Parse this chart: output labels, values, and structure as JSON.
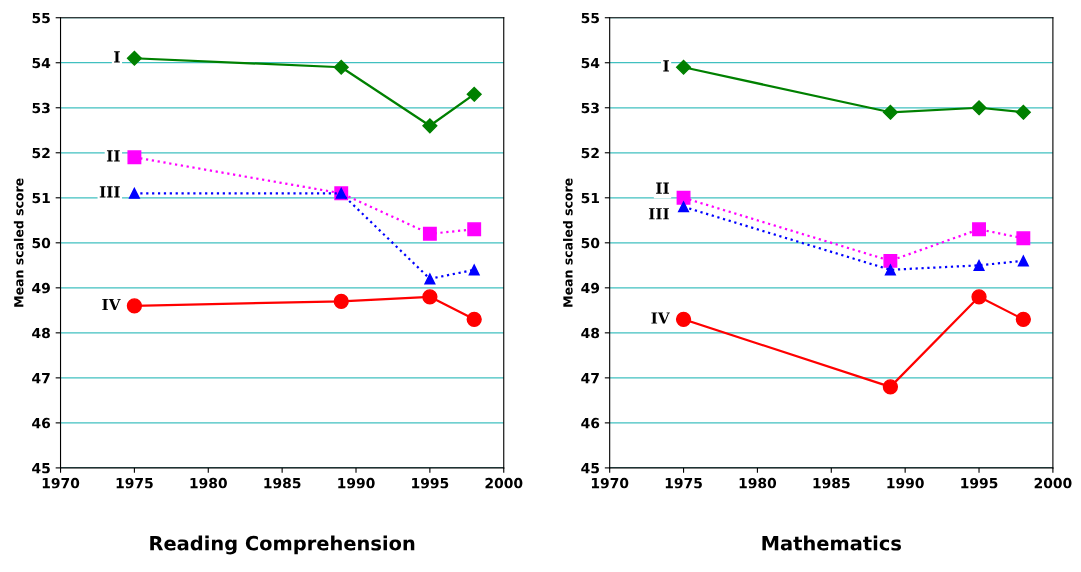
{
  "chart_data": [
    {
      "type": "line",
      "xlabel": "Reading Comprehension",
      "ylabel": "Mean scaled score",
      "x": [
        1975,
        1989,
        1995,
        1998
      ],
      "xlim": [
        1970,
        2000
      ],
      "xticks": [
        1970,
        1975,
        1980,
        1985,
        1990,
        1995,
        2000
      ],
      "ylim": [
        45,
        55
      ],
      "yticks": [
        45,
        46,
        47,
        48,
        49,
        50,
        51,
        52,
        53,
        54,
        55
      ],
      "grid": "y",
      "legend": false,
      "series": [
        {
          "name": "I",
          "color": "#008000",
          "marker": "diamond",
          "line_style": "solid",
          "values": [
            54.1,
            53.9,
            52.6,
            53.3
          ]
        },
        {
          "name": "II",
          "color": "#ff00ff",
          "marker": "square",
          "line_style": "dotted",
          "values": [
            51.9,
            51.1,
            50.2,
            50.3
          ]
        },
        {
          "name": "III",
          "color": "#0000ff",
          "marker": "triangle",
          "line_style": "dotted",
          "values": [
            51.1,
            51.1,
            49.2,
            49.4
          ]
        },
        {
          "name": "IV",
          "color": "#ff0000",
          "marker": "circle",
          "line_style": "solid",
          "values": [
            48.6,
            48.7,
            48.8,
            48.3
          ]
        }
      ]
    },
    {
      "type": "line",
      "xlabel": "Mathematics",
      "ylabel": "Mean scaled score",
      "x": [
        1975,
        1989,
        1995,
        1998
      ],
      "xlim": [
        1970,
        2000
      ],
      "xticks": [
        1970,
        1975,
        1980,
        1985,
        1990,
        1995,
        2000
      ],
      "ylim": [
        45,
        55
      ],
      "yticks": [
        45,
        46,
        47,
        48,
        49,
        50,
        51,
        52,
        53,
        54,
        55
      ],
      "grid": "y",
      "legend": false,
      "series": [
        {
          "name": "I",
          "color": "#008000",
          "marker": "diamond",
          "line_style": "solid",
          "values": [
            53.9,
            52.9,
            53.0,
            52.9
          ]
        },
        {
          "name": "II",
          "color": "#ff00ff",
          "marker": "square",
          "line_style": "dotted",
          "values": [
            51.0,
            49.6,
            50.3,
            50.1
          ]
        },
        {
          "name": "III",
          "color": "#0000ff",
          "marker": "triangle",
          "line_style": "dotted",
          "values": [
            50.8,
            49.4,
            49.5,
            49.6
          ]
        },
        {
          "name": "IV",
          "color": "#ff0000",
          "marker": "circle",
          "line_style": "solid",
          "values": [
            48.3,
            46.8,
            48.8,
            48.3
          ]
        }
      ]
    }
  ]
}
